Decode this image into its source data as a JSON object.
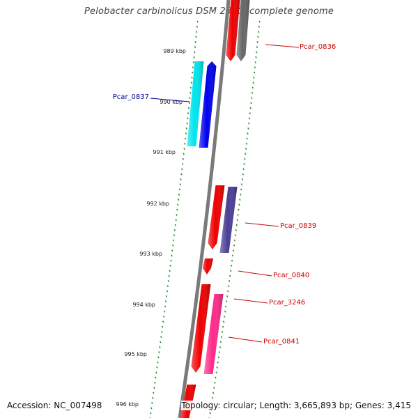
{
  "title": "Pelobacter carbinolicus DSM 2380, complete genome",
  "footer": {
    "accession": "Accession: NC_007498",
    "stats": "Topology: circular; Length: 3,665,893 bp; Genes: 3,415"
  },
  "colors": {
    "backbone": "#7a7a7a",
    "ticks": "#2a8a2a",
    "label_forward": "#cc0000",
    "label_reverse": "#000099"
  },
  "scale_labels": [
    "989 kbp",
    "990 kbp",
    "991 kbp",
    "992 kbp",
    "993 kbp",
    "994 kbp",
    "995 kbp",
    "996 kbp"
  ],
  "genes": [
    {
      "id": "g_top_red",
      "label": "",
      "strand": "forward",
      "color": "#ee0000"
    },
    {
      "id": "g_top_gray",
      "label": "",
      "strand": "forward",
      "color": "#666666"
    },
    {
      "id": "g_0837a",
      "label": "",
      "strand": "reverse",
      "color": "#00e5ee"
    },
    {
      "id": "g_0837b",
      "label": "",
      "strand": "reverse",
      "color": "#0000ee"
    },
    {
      "id": "g_0839a",
      "label": "",
      "strand": "forward",
      "color": "#ee0000"
    },
    {
      "id": "g_0839b",
      "label": "",
      "strand": "forward",
      "color": "#4b3e96"
    },
    {
      "id": "g_0840",
      "label": "",
      "strand": "forward",
      "color": "#ee0000"
    },
    {
      "id": "g_3246a",
      "label": "",
      "strand": "forward",
      "color": "#ee0000"
    },
    {
      "id": "g_3246b",
      "label": "",
      "strand": "forward",
      "color": "#ff2a8a"
    },
    {
      "id": "g_bottom",
      "label": "",
      "strand": "forward",
      "color": "#ee0000"
    }
  ],
  "gene_labels": [
    {
      "text": "Pcar_0836",
      "color": "#cc0000"
    },
    {
      "text": "Pcar_0837",
      "color": "#000099"
    },
    {
      "text": "Pcar_0839",
      "color": "#cc0000"
    },
    {
      "text": "Pcar_0840",
      "color": "#cc0000"
    },
    {
      "text": "Pcar_3246",
      "color": "#cc0000"
    },
    {
      "text": "Pcar_0841",
      "color": "#cc0000"
    }
  ]
}
